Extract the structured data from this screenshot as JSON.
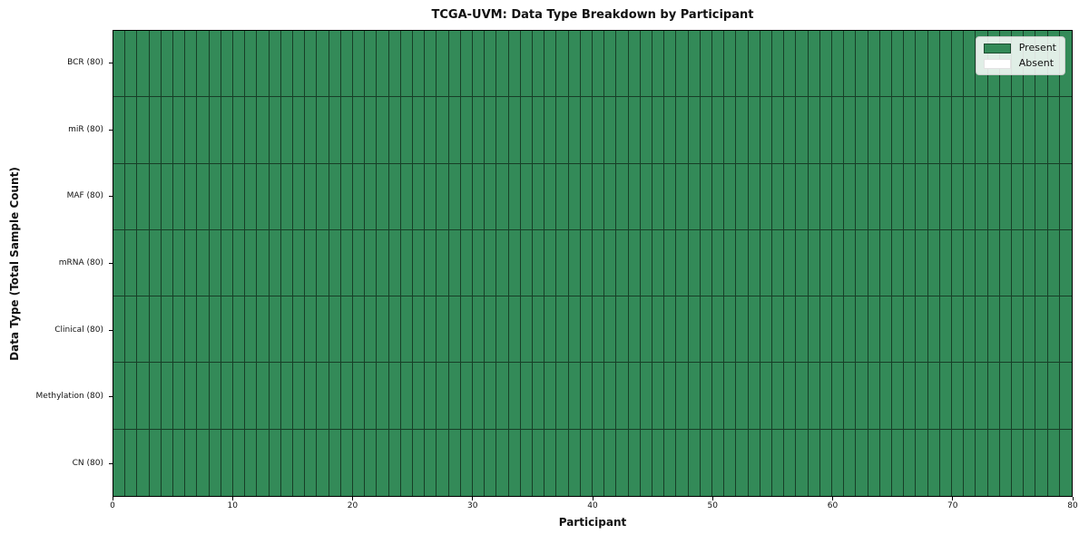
{
  "chart_data": {
    "type": "heatmap",
    "title": "TCGA-UVM: Data Type Breakdown by Participant",
    "xlabel": "Participant",
    "ylabel": "Data Type (Total Sample Count)",
    "x_range": [
      0,
      80
    ],
    "x_ticks": [
      0,
      10,
      20,
      30,
      40,
      50,
      60,
      70,
      80
    ],
    "n_participants": 80,
    "rows": [
      {
        "label": "BCR (80)",
        "data_type": "BCR",
        "total_samples": 80,
        "present_count": 80,
        "absent_count": 0
      },
      {
        "label": "miR (80)",
        "data_type": "miR",
        "total_samples": 80,
        "present_count": 80,
        "absent_count": 0
      },
      {
        "label": "MAF (80)",
        "data_type": "MAF",
        "total_samples": 80,
        "present_count": 80,
        "absent_count": 0
      },
      {
        "label": "mRNA (80)",
        "data_type": "mRNA",
        "total_samples": 80,
        "present_count": 80,
        "absent_count": 0
      },
      {
        "label": "Clinical (80)",
        "data_type": "Clinical",
        "total_samples": 80,
        "present_count": 80,
        "absent_count": 0
      },
      {
        "label": "Methylation (80)",
        "data_type": "Methylation",
        "total_samples": 80,
        "present_count": 80,
        "absent_count": 0
      },
      {
        "label": "CN (80)",
        "data_type": "CN",
        "total_samples": 80,
        "present_count": 80,
        "absent_count": 0
      }
    ],
    "cell_values_note": "every cell is value 1 (Present): all 7 data types present for all 80 participants",
    "grid": "mesh lines between every participant column and data-type row",
    "legend": {
      "position": "upper right",
      "items": [
        {
          "label": "Present",
          "color": "#338a58"
        },
        {
          "label": "Absent",
          "color": "#ffffff"
        }
      ]
    },
    "colors": {
      "present": "#338a58",
      "absent": "#ffffff",
      "cell_edge": "rgba(0,0,0,0.55)",
      "spine": "#000000",
      "legend_face": "rgba(255,255,255,0.85)",
      "legend_edge": "#cccccc"
    }
  }
}
